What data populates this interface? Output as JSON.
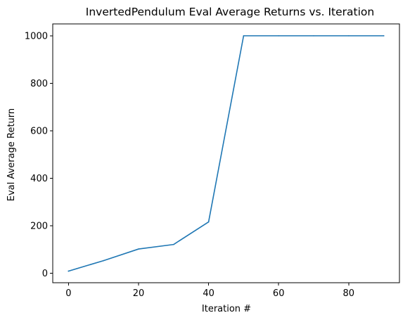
{
  "chart_data": {
    "type": "line",
    "title": "InvertedPendulum Eval Average Returns vs. Iteration",
    "xlabel": "Iteration #",
    "ylabel": "Eval Average Return",
    "xlim": [
      -4.5,
      94.5
    ],
    "ylim": [
      -40,
      1050
    ],
    "xticks": [
      0,
      20,
      40,
      60,
      80
    ],
    "yticks": [
      0,
      200,
      400,
      600,
      800,
      1000
    ],
    "grid": false,
    "legend": "none",
    "series": [
      {
        "color": "#1f77b4",
        "x": [
          0,
          10,
          20,
          30,
          40,
          50,
          60,
          70,
          80,
          90
        ],
        "y": [
          9,
          53,
          102,
          121,
          216,
          1000,
          1000,
          1000,
          1000,
          1000
        ]
      }
    ]
  }
}
